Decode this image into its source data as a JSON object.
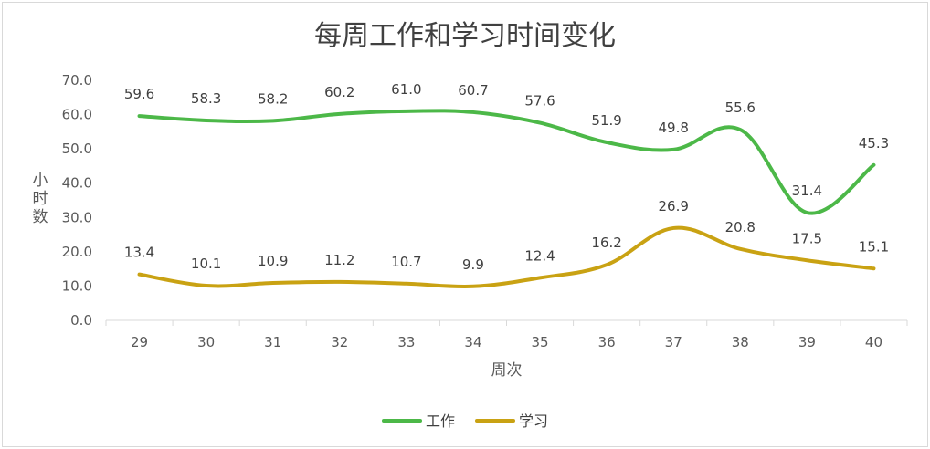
{
  "chart_data": {
    "type": "line",
    "title": "每周工作和学习时间变化",
    "xlabel": "周次",
    "ylabel": "小时数",
    "ylim": [
      0,
      70
    ],
    "yticks": [
      "0.0",
      "10.0",
      "20.0",
      "30.0",
      "40.0",
      "50.0",
      "60.0",
      "70.0"
    ],
    "categories": [
      "29",
      "30",
      "31",
      "32",
      "33",
      "34",
      "35",
      "36",
      "37",
      "38",
      "39",
      "40"
    ],
    "smooth": true,
    "grid": false,
    "legend_position": "bottom",
    "series": [
      {
        "name": "工作",
        "color": "#4cb848",
        "values": [
          59.6,
          58.3,
          58.2,
          60.2,
          61.0,
          60.7,
          57.6,
          51.9,
          49.8,
          55.6,
          31.4,
          45.3
        ],
        "labels": [
          "59.6",
          "58.3",
          "58.2",
          "60.2",
          "61.0",
          "60.7",
          "57.6",
          "51.9",
          "49.8",
          "55.6",
          "31.4",
          "45.3"
        ]
      },
      {
        "name": "学习",
        "color": "#c9a213",
        "values": [
          13.4,
          10.1,
          10.9,
          11.2,
          10.7,
          9.9,
          12.4,
          16.2,
          26.9,
          20.8,
          17.5,
          15.1
        ],
        "labels": [
          "13.4",
          "10.1",
          "10.9",
          "11.2",
          "10.7",
          "9.9",
          "12.4",
          "16.2",
          "26.9",
          "20.8",
          "17.5",
          "15.1"
        ]
      }
    ]
  }
}
